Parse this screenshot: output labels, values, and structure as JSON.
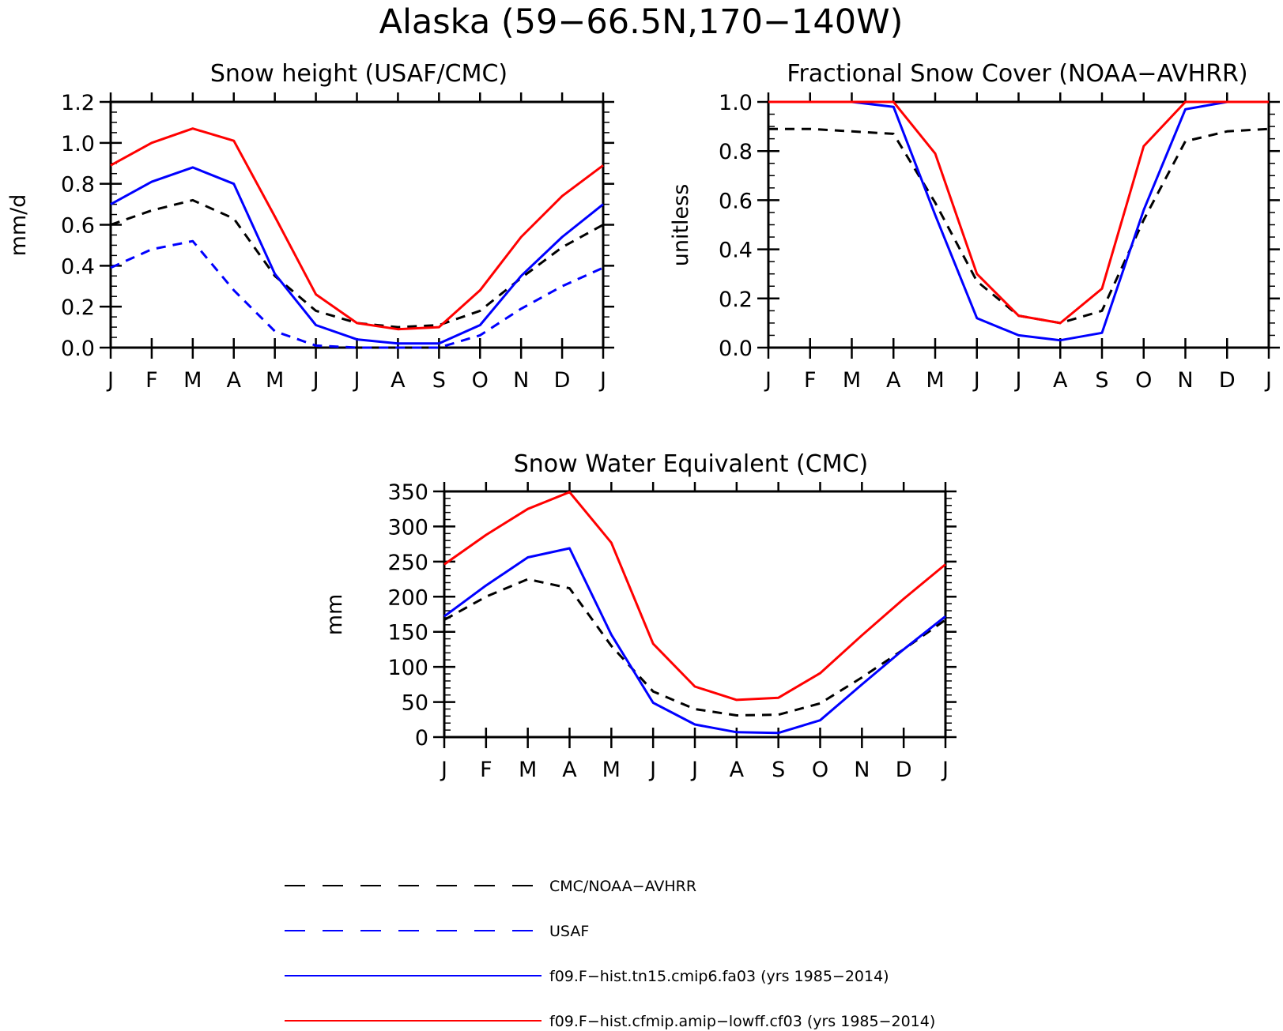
{
  "title": "Alaska (59−66.5N,170−140W)",
  "months": [
    "J",
    "F",
    "M",
    "A",
    "M",
    "J",
    "J",
    "A",
    "S",
    "O",
    "N",
    "D",
    "J"
  ],
  "chart_data": [
    {
      "id": "snow-height",
      "type": "line",
      "title": "Snow height (USAF/CMC)",
      "xlabel": "",
      "ylabel": "mm/d",
      "ylim": [
        0,
        1.2
      ],
      "yticks": [
        0,
        0.2,
        0.4,
        0.6,
        0.8,
        1.0,
        1.2
      ],
      "ytick_labels": [
        "0.0",
        "0.2",
        "0.4",
        "0.6",
        "0.8",
        "1.0",
        "1.2"
      ],
      "categories": [
        "J",
        "F",
        "M",
        "A",
        "M",
        "J",
        "J",
        "A",
        "S",
        "O",
        "N",
        "D",
        "J"
      ],
      "series": [
        {
          "name": "CMC/NOAA-AVHRR",
          "color": "#000000",
          "dashed": true,
          "values": [
            0.6,
            0.67,
            0.72,
            0.63,
            0.35,
            0.18,
            0.12,
            0.1,
            0.11,
            0.18,
            0.34,
            0.49,
            0.6
          ]
        },
        {
          "name": "USAF",
          "color": "#0000ff",
          "dashed": true,
          "values": [
            0.39,
            0.48,
            0.52,
            0.28,
            0.08,
            0.01,
            0.0,
            0.0,
            0.0,
            0.06,
            0.19,
            0.3,
            0.39
          ]
        },
        {
          "name": "f09.F−hist.tn15.cmip6.fa03 (yrs 1985−2014)",
          "color": "#0000ff",
          "dashed": false,
          "values": [
            0.7,
            0.81,
            0.88,
            0.8,
            0.36,
            0.11,
            0.04,
            0.02,
            0.02,
            0.11,
            0.35,
            0.54,
            0.7
          ]
        },
        {
          "name": "f09.F−hist.cfmip.amip−lowff.cf03 (yrs 1985−2014)",
          "color": "#ff0000",
          "dashed": false,
          "values": [
            0.89,
            1.0,
            1.07,
            1.01,
            0.64,
            0.26,
            0.12,
            0.09,
            0.1,
            0.28,
            0.54,
            0.74,
            0.89
          ]
        }
      ]
    },
    {
      "id": "snow-cover",
      "type": "line",
      "title": "Fractional Snow Cover (NOAA−AVHRR)",
      "xlabel": "",
      "ylabel": "unitless",
      "ylim": [
        0,
        1.0
      ],
      "yticks": [
        0,
        0.2,
        0.4,
        0.6,
        0.8,
        1.0
      ],
      "ytick_labels": [
        "0.0",
        "0.2",
        "0.4",
        "0.6",
        "0.8",
        "1.0"
      ],
      "categories": [
        "J",
        "F",
        "M",
        "A",
        "M",
        "J",
        "J",
        "A",
        "S",
        "O",
        "N",
        "D",
        "J"
      ],
      "series": [
        {
          "name": "CMC/NOAA-AVHRR",
          "color": "#000000",
          "dashed": true,
          "values": [
            0.89,
            0.89,
            0.88,
            0.87,
            0.59,
            0.27,
            0.13,
            0.1,
            0.15,
            0.52,
            0.84,
            0.88,
            0.89
          ]
        },
        {
          "name": "f09.F−hist.tn15.cmip6.fa03 (yrs 1985−2014)",
          "color": "#0000ff",
          "dashed": false,
          "values": [
            1.0,
            1.0,
            1.0,
            0.98,
            0.54,
            0.12,
            0.05,
            0.03,
            0.06,
            0.56,
            0.97,
            1.0,
            1.0
          ]
        },
        {
          "name": "f09.F−hist.cfmip.amip−lowff.cf03 (yrs 1985−2014)",
          "color": "#ff0000",
          "dashed": false,
          "values": [
            1.0,
            1.0,
            1.0,
            1.0,
            0.79,
            0.3,
            0.13,
            0.1,
            0.24,
            0.82,
            1.0,
            1.0,
            1.0
          ]
        }
      ]
    },
    {
      "id": "swe",
      "type": "line",
      "title": "Snow Water Equivalent (CMC)",
      "xlabel": "",
      "ylabel": "mm",
      "ylim": [
        0,
        350
      ],
      "yticks": [
        0,
        50,
        100,
        150,
        200,
        250,
        300,
        350
      ],
      "ytick_labels": [
        "0",
        "50",
        "100",
        "150",
        "200",
        "250",
        "300",
        "350"
      ],
      "categories": [
        "J",
        "F",
        "M",
        "A",
        "M",
        "J",
        "J",
        "A",
        "S",
        "O",
        "N",
        "D",
        "J"
      ],
      "series": [
        {
          "name": "CMC/NOAA-AVHRR",
          "color": "#000000",
          "dashed": true,
          "values": [
            167,
            200,
            225,
            212,
            130,
            65,
            40,
            31,
            32,
            48,
            85,
            125,
            167
          ]
        },
        {
          "name": "f09.F−hist.tn15.cmip6.fa03 (yrs 1985−2014)",
          "color": "#0000ff",
          "dashed": false,
          "values": [
            172,
            216,
            256,
            269,
            146,
            49,
            18,
            7,
            6,
            24,
            75,
            125,
            172
          ]
        },
        {
          "name": "f09.F−hist.cfmip.amip−lowff.cf03 (yrs 1985−2014)",
          "color": "#ff0000",
          "dashed": false,
          "values": [
            246,
            288,
            325,
            349,
            277,
            133,
            72,
            53,
            56,
            91,
            145,
            197,
            246
          ]
        }
      ]
    }
  ],
  "legend": [
    {
      "label": "CMC/NOAA−AVHRR",
      "color": "#000000",
      "dashed": true
    },
    {
      "label": "USAF",
      "color": "#0000ff",
      "dashed": true
    },
    {
      "label": "f09.F−hist.tn15.cmip6.fa03 (yrs 1985−2014)",
      "color": "#0000ff",
      "dashed": false
    },
    {
      "label": "f09.F−hist.cfmip.amip−lowff.cf03 (yrs 1985−2014)",
      "color": "#ff0000",
      "dashed": false
    }
  ]
}
